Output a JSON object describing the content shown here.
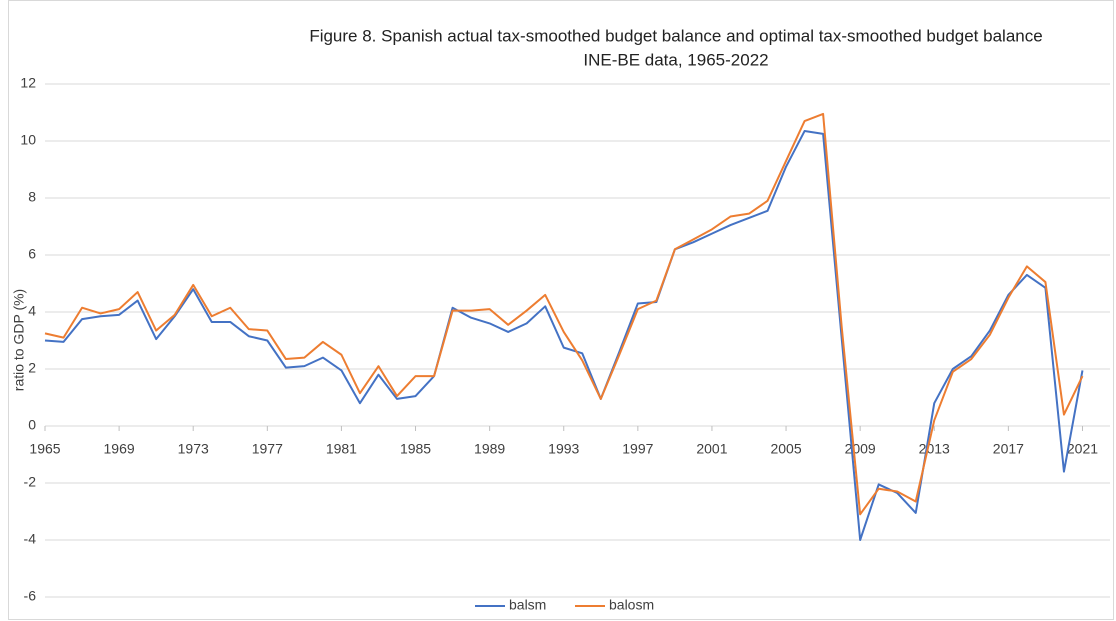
{
  "chart_data": {
    "type": "line",
    "title": "Figure 8. Spanish actual tax-smoothed budget balance and optimal tax-smoothed budget balance",
    "subtitle": "INE-BE data, 1965-2022",
    "y_label": "ratio to GDP (%)",
    "x": [
      1965,
      1966,
      1967,
      1968,
      1969,
      1970,
      1971,
      1972,
      1973,
      1974,
      1975,
      1976,
      1977,
      1978,
      1979,
      1980,
      1981,
      1982,
      1983,
      1984,
      1985,
      1986,
      1987,
      1988,
      1989,
      1990,
      1991,
      1992,
      1993,
      1994,
      1995,
      1996,
      1997,
      1998,
      1999,
      2000,
      2001,
      2002,
      2003,
      2004,
      2005,
      2006,
      2007,
      2008,
      2009,
      2010,
      2011,
      2012,
      2013,
      2014,
      2015,
      2016,
      2017,
      2018,
      2019,
      2020,
      2021
    ],
    "xlim": [
      1965,
      2022
    ],
    "xticks": [
      1965,
      1969,
      1973,
      1977,
      1981,
      1985,
      1989,
      1993,
      1997,
      2001,
      2005,
      2009,
      2013,
      2017,
      2021
    ],
    "ylim": [
      -6,
      12
    ],
    "yticks": [
      -6,
      -4,
      -2,
      0,
      2,
      4,
      6,
      8,
      10,
      12
    ],
    "grid": true,
    "legend": "bottom",
    "series": [
      {
        "name": "balsm",
        "color": "#4472c4",
        "values": [
          3.0,
          2.95,
          3.75,
          3.85,
          3.9,
          4.4,
          3.05,
          3.85,
          4.8,
          3.65,
          3.65,
          3.15,
          3.0,
          2.05,
          2.1,
          2.4,
          1.95,
          0.8,
          1.8,
          0.95,
          1.05,
          1.75,
          4.15,
          3.8,
          3.6,
          3.3,
          3.6,
          4.2,
          2.75,
          2.55,
          0.95,
          2.6,
          4.3,
          4.35,
          6.2,
          6.45,
          6.75,
          7.05,
          7.3,
          7.55,
          9.1,
          10.35,
          10.25,
          3.1,
          -4.0,
          -2.05,
          -2.35,
          -3.05,
          0.8,
          2.0,
          2.45,
          3.35,
          4.6,
          5.3,
          4.85,
          -1.6,
          1.95
        ]
      },
      {
        "name": "balosm",
        "color": "#ed7d31",
        "values": [
          3.25,
          3.1,
          4.15,
          3.95,
          4.1,
          4.7,
          3.35,
          3.9,
          4.95,
          3.85,
          4.15,
          3.4,
          3.35,
          2.35,
          2.4,
          2.95,
          2.5,
          1.15,
          2.1,
          1.05,
          1.75,
          1.75,
          4.05,
          4.05,
          4.1,
          3.55,
          4.05,
          4.6,
          3.3,
          2.3,
          0.95,
          2.5,
          4.1,
          4.4,
          6.2,
          6.55,
          6.9,
          7.35,
          7.45,
          7.9,
          9.3,
          10.7,
          10.95,
          3.5,
          -3.1,
          -2.2,
          -2.3,
          -2.65,
          0.2,
          1.9,
          2.35,
          3.2,
          4.5,
          5.6,
          5.05,
          0.4,
          1.75
        ]
      }
    ]
  }
}
